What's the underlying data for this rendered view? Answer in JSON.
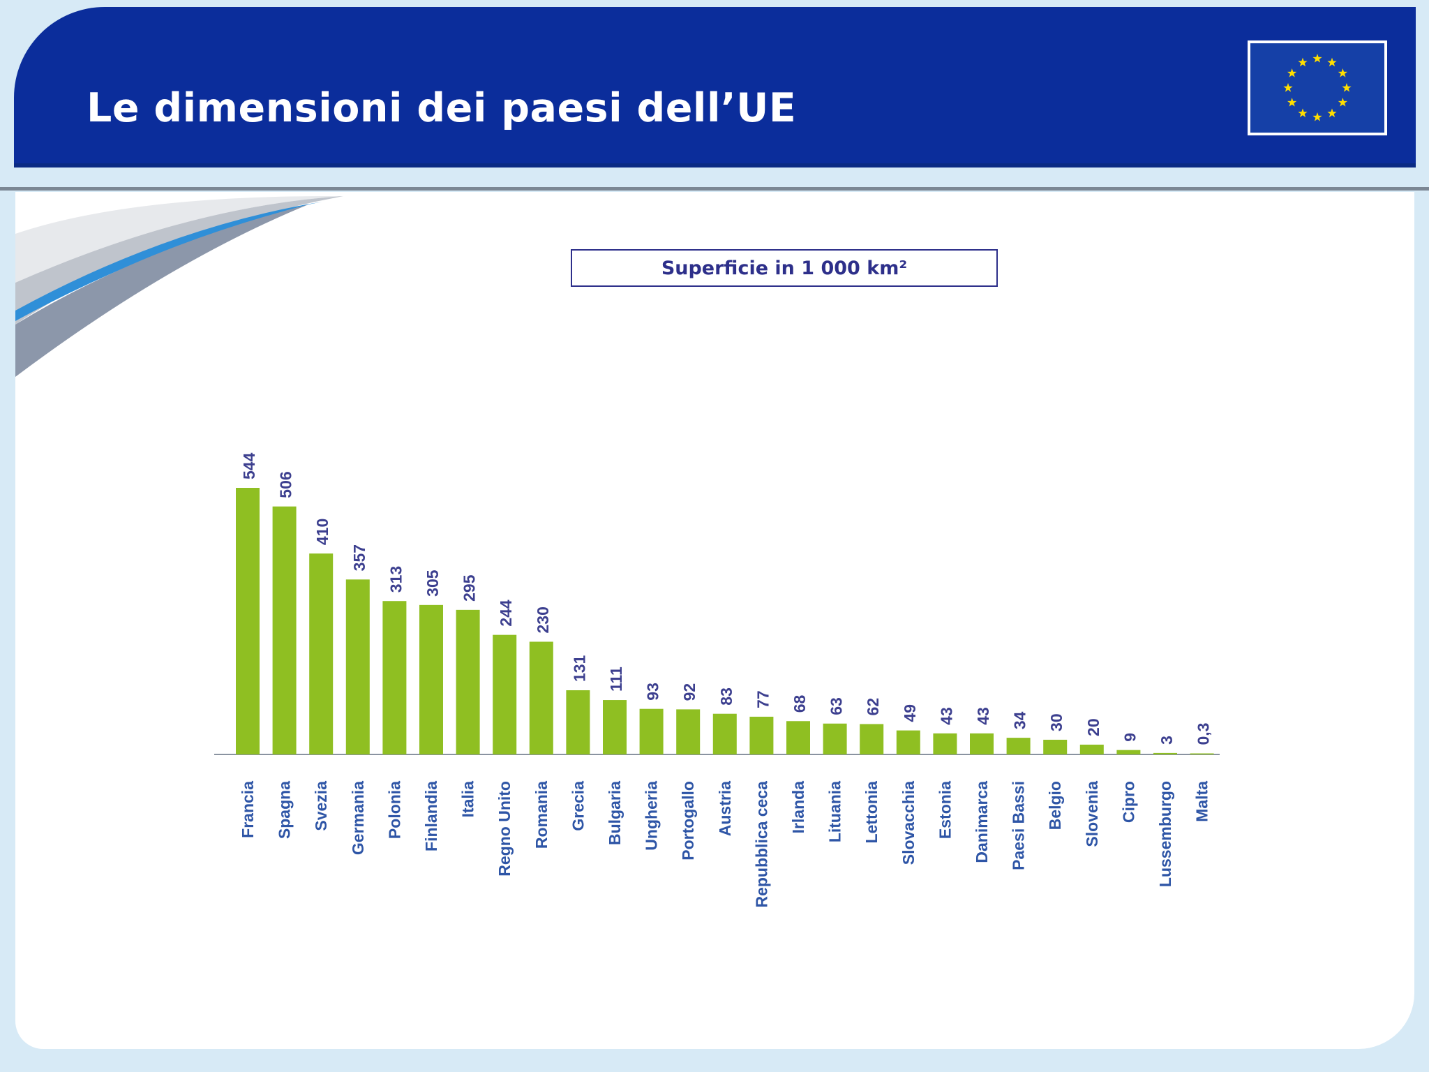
{
  "header": {
    "title": "Le dimensioni dei paesi dell’UE"
  },
  "colors": {
    "header_bg": "#0b2d9b",
    "bar": "#8fbf22",
    "value_label": "#3c3f8f",
    "category_label": "#2e55a6",
    "flag_star": "#ffde00"
  },
  "icons": {
    "flag": "eu-flag-icon"
  },
  "chart_data": {
    "type": "bar",
    "title": "Superficie in 1 000 km²",
    "xlabel": "",
    "ylabel": "",
    "grid": false,
    "legend": "none",
    "ylim": [
      0,
      544
    ],
    "categories": [
      "Francia",
      "Spagna",
      "Svezia",
      "Germania",
      "Polonia",
      "Finlandia",
      "Italia",
      "Regno Unito",
      "Romania",
      "Grecia",
      "Bulgaria",
      "Ungheria",
      "Portogallo",
      "Austria",
      "Repubblica ceca",
      "Irlanda",
      "Lituania",
      "Lettonia",
      "Slovacchia",
      "Estonia",
      "Danimarca",
      "Paesi Bassi",
      "Belgio",
      "Slovenia",
      "Cipro",
      "Lussemburgo",
      "Malta"
    ],
    "values": [
      544,
      506,
      410,
      357,
      313,
      305,
      295,
      244,
      230,
      131,
      111,
      93,
      92,
      83,
      77,
      68,
      63,
      62,
      49,
      43,
      43,
      34,
      30,
      20,
      9,
      3,
      0.3
    ],
    "value_labels": [
      "544",
      "506",
      "410",
      "357",
      "313",
      "305",
      "295",
      "244",
      "230",
      "131",
      "111",
      "93",
      "92",
      "83",
      "77",
      "68",
      "63",
      "62",
      "49",
      "43",
      "43",
      "34",
      "30",
      "20",
      "9",
      "3",
      "0,3"
    ]
  }
}
